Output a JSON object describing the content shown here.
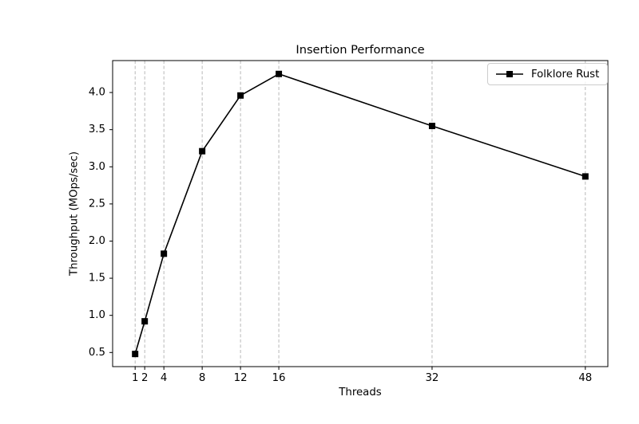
{
  "chart_data": {
    "type": "line",
    "title": "Insertion Performance",
    "xlabel": "Threads",
    "ylabel": "Throughput (MOps/sec)",
    "x": [
      1,
      2,
      4,
      8,
      12,
      16,
      32,
      48
    ],
    "series": [
      {
        "name": "Folklore Rust",
        "color": "#000000",
        "marker": "square",
        "values": [
          0.48,
          0.92,
          1.83,
          3.21,
          3.96,
          4.25,
          3.55,
          2.87
        ]
      }
    ],
    "xticks": {
      "positions": [
        1,
        2,
        4,
        8,
        12,
        16,
        32,
        48
      ],
      "labels": [
        "1",
        "2",
        "4",
        "8",
        "12",
        "16",
        "32",
        "48"
      ]
    },
    "yticks": {
      "positions": [
        0.5,
        1.0,
        1.5,
        2.0,
        2.5,
        3.0,
        3.5,
        4.0
      ],
      "labels": [
        "0.5",
        "1.0",
        "1.5",
        "2.0",
        "2.5",
        "3.0",
        "3.5",
        "4.0"
      ]
    },
    "xlim": [
      -1.35,
      50.35
    ],
    "ylim": [
      0.31,
      4.43
    ],
    "grid": {
      "axis": "x",
      "style": "dashed",
      "color": "#b0b0b0"
    },
    "axis_color": "#000000",
    "legend": {
      "position": "upper-right"
    }
  }
}
